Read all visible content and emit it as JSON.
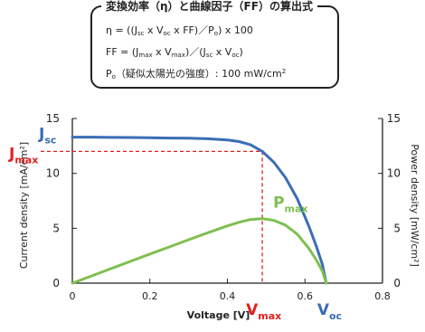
{
  "formula": {
    "title": "変換効率（η）と曲線因子（FF）の算出式",
    "line1": {
      "a": "η = ((J",
      "b": "sc",
      "c": " x V",
      "d": "oc",
      "e": " x FF)／P",
      "f": "o",
      "g": ") x 100"
    },
    "line2": {
      "a": "FF = (J",
      "b": "max",
      "c": " x V",
      "d": "max",
      "e": ")／(J",
      "f": "sc",
      "g": " x V",
      "h": "oc",
      "i": ")"
    },
    "line3": {
      "a": "P",
      "b": "o",
      "c": "（疑似太陽光の強度）: 100 mW/cm",
      "d": "2"
    }
  },
  "chart_data": {
    "type": "line",
    "xlabel": "Voltage [V]",
    "ylabel": "Current density [mA/cm²]",
    "y2label": "Power density [mW/cm²]",
    "xlim": [
      0,
      0.8
    ],
    "ylim": [
      0,
      15
    ],
    "y2lim": [
      0,
      15
    ],
    "xticks": [
      "0",
      "0.2",
      "0.4",
      "0.6",
      "0.8"
    ],
    "yticks": [
      "0",
      "5",
      "10",
      "15"
    ],
    "y2ticks": [
      "0",
      "5",
      "10",
      "15"
    ],
    "grid": false,
    "colors": {
      "current": "#3a6db5",
      "power": "#7fbf4f",
      "annot": "#e02020",
      "axis": "#222222"
    },
    "series": [
      {
        "axis": "left",
        "x": [
          0,
          0.05,
          0.1,
          0.15,
          0.2,
          0.25,
          0.3,
          0.35,
          0.4,
          0.43,
          0.46,
          0.49,
          0.52,
          0.55,
          0.58,
          0.61,
          0.63,
          0.645,
          0.655
        ],
        "y": [
          13.3,
          13.3,
          13.28,
          13.27,
          13.25,
          13.22,
          13.2,
          13.15,
          13.05,
          12.9,
          12.6,
          12.0,
          11.0,
          9.6,
          7.7,
          5.2,
          3.3,
          1.7,
          0
        ]
      },
      {
        "axis": "right",
        "x": [
          0,
          0.05,
          0.1,
          0.15,
          0.2,
          0.25,
          0.3,
          0.35,
          0.4,
          0.43,
          0.46,
          0.49,
          0.52,
          0.55,
          0.58,
          0.61,
          0.63,
          0.645,
          0.655
        ],
        "y": [
          0,
          0.66,
          1.33,
          1.99,
          2.65,
          3.3,
          3.96,
          4.6,
          5.22,
          5.55,
          5.8,
          5.88,
          5.72,
          5.28,
          4.47,
          3.17,
          2.08,
          1.1,
          0
        ]
      }
    ],
    "annotations": {
      "jsc": {
        "main": "J",
        "sub": "sc",
        "y": 13.3
      },
      "jmax": {
        "main": "J",
        "sub": "max",
        "y": 12.0
      },
      "vmax": {
        "main": "V",
        "sub": "max",
        "x": 0.49
      },
      "voc": {
        "main": "V",
        "sub": "oc",
        "x": 0.655
      },
      "pmax": {
        "main": "P",
        "sub": "max",
        "x": 0.49,
        "y": 5.88
      }
    }
  }
}
